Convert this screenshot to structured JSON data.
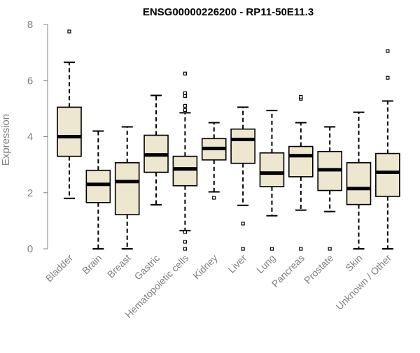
{
  "chart_data": {
    "type": "boxplot",
    "title": "ENSG00000226200 - RP11-50E11.3",
    "xlabel": "",
    "ylabel": "Expression",
    "ylim": [
      0,
      8
    ],
    "yticks": [
      "0",
      "2",
      "4",
      "6",
      "8"
    ],
    "grid": false,
    "colors": {
      "box_fill": "#EDE7CF",
      "box_stroke": "#000000",
      "axis": "#808080"
    },
    "categories": [
      "Bladder",
      "Brain",
      "Breast",
      "Gastric",
      "Hematopoietic cells",
      "Kidney",
      "Liver",
      "Lung",
      "Pancreas",
      "Prostate",
      "Skin",
      "Unknown / Other"
    ],
    "boxes": [
      {
        "min": 1.8,
        "q1": 3.3,
        "median": 4.0,
        "q3": 5.05,
        "max": 6.65,
        "outliers": [
          7.75
        ]
      },
      {
        "min": 0.0,
        "q1": 1.65,
        "median": 2.3,
        "q3": 2.8,
        "max": 4.2,
        "outliers": []
      },
      {
        "min": 0.0,
        "q1": 1.22,
        "median": 2.4,
        "q3": 3.07,
        "max": 4.35,
        "outliers": []
      },
      {
        "min": 1.57,
        "q1": 2.73,
        "median": 3.35,
        "q3": 4.05,
        "max": 5.47,
        "outliers": []
      },
      {
        "min": 0.65,
        "q1": 2.25,
        "median": 2.85,
        "q3": 3.3,
        "max": 4.85,
        "outliers": [
          0.0,
          0.25,
          0.6,
          4.95,
          5.1,
          5.45,
          5.55,
          6.25
        ]
      },
      {
        "min": 2.03,
        "q1": 3.17,
        "median": 3.58,
        "q3": 3.93,
        "max": 4.5,
        "outliers": [
          1.82
        ]
      },
      {
        "min": 1.55,
        "q1": 3.05,
        "median": 3.9,
        "q3": 4.27,
        "max": 5.05,
        "outliers": [
          0.0,
          0.9
        ]
      },
      {
        "min": 1.18,
        "q1": 2.22,
        "median": 2.7,
        "q3": 3.42,
        "max": 4.93,
        "outliers": [
          0.0
        ]
      },
      {
        "min": 1.38,
        "q1": 2.57,
        "median": 3.32,
        "q3": 3.65,
        "max": 4.5,
        "outliers": [
          0.0,
          5.35,
          5.42
        ]
      },
      {
        "min": 1.33,
        "q1": 2.08,
        "median": 2.82,
        "q3": 3.47,
        "max": 4.35,
        "outliers": [
          0.0
        ]
      },
      {
        "min": 0.0,
        "q1": 1.58,
        "median": 2.15,
        "q3": 3.07,
        "max": 4.87,
        "outliers": []
      },
      {
        "min": 0.0,
        "q1": 1.87,
        "median": 2.73,
        "q3": 3.4,
        "max": 5.27,
        "outliers": [
          6.1,
          7.05
        ]
      }
    ]
  }
}
